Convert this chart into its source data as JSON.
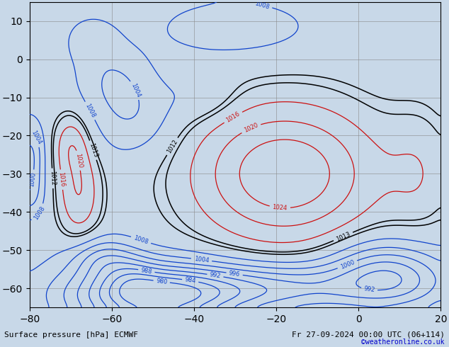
{
  "title_left": "Surface pressure [hPa] ECMWF",
  "title_right": "Fr 27-09-2024 00:00 UTC (06+114)",
  "copyright": "©weatheronline.co.uk",
  "ocean_color": "#c8d8e8",
  "land_color": "#a8d878",
  "grid_color": "#888888",
  "lon_min": -80,
  "lon_max": 20,
  "lat_min": -65,
  "lat_max": 15,
  "tick_fontsize": 7,
  "title_fontsize": 8,
  "copyright_fontsize": 7,
  "copyright_color": "#0000cc",
  "label_fontsize": 6,
  "isobar_lw": 0.9
}
